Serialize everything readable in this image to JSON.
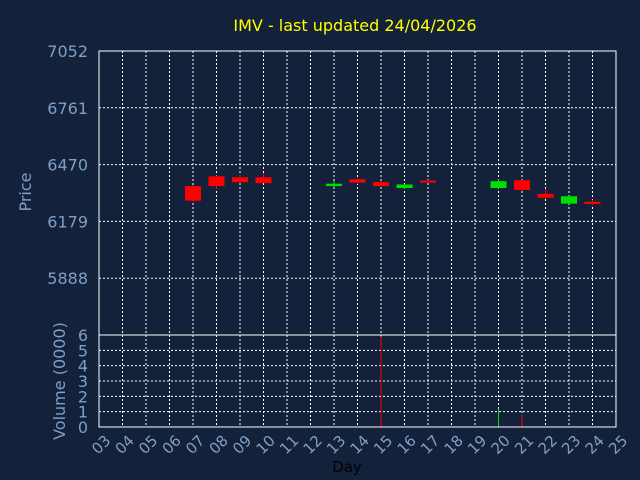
{
  "colors": {
    "background": "#13223a",
    "title": "#ffff00",
    "axis_text": "#7f9fc8",
    "frame": "#ffffff",
    "grid": "#ffffff",
    "bull": "#00e000",
    "bear": "#ff0000"
  },
  "chart_data": {
    "type": "candlestick",
    "title": "IMV - last updated 24/04/2026",
    "xlabel": "Day",
    "price_panel": {
      "ylabel": "Price",
      "ylim": [
        5597,
        7052
      ],
      "ytick_labels": [
        "7052",
        "6761",
        "6470",
        "6179",
        "5888"
      ],
      "grid": true
    },
    "volume_panel": {
      "ylabel": "Volume (0000)",
      "ylim": [
        0,
        6
      ],
      "ytick_labels": [
        "0",
        "1",
        "2",
        "3",
        "4",
        "5",
        "6"
      ],
      "grid": true
    },
    "x_tick_labels": [
      "03",
      "04",
      "05",
      "06",
      "07",
      "08",
      "09",
      "10",
      "11",
      "12",
      "13",
      "14",
      "15",
      "16",
      "17",
      "18",
      "19",
      "20",
      "21",
      "22",
      "23",
      "24",
      "25"
    ],
    "candles": [
      {
        "day": "07",
        "open": 6360,
        "high": 6365,
        "low": 6280,
        "close": 6285
      },
      {
        "day": "08",
        "open": 6410,
        "high": 6415,
        "low": 6345,
        "close": 6360
      },
      {
        "day": "09",
        "open": 6405,
        "high": 6420,
        "low": 6375,
        "close": 6380
      },
      {
        "day": "10",
        "open": 6405,
        "high": 6425,
        "low": 6375,
        "close": 6375
      },
      {
        "day": "13",
        "open": 6360,
        "high": 6385,
        "low": 6355,
        "close": 6372
      },
      {
        "day": "14",
        "open": 6395,
        "high": 6398,
        "low": 6370,
        "close": 6378
      },
      {
        "day": "15",
        "open": 6380,
        "high": 6385,
        "low": 6358,
        "close": 6360
      },
      {
        "day": "16",
        "open": 6350,
        "high": 6372,
        "low": 6345,
        "close": 6368
      },
      {
        "day": "17",
        "open": 6388,
        "high": 6392,
        "low": 6380,
        "close": 6383
      },
      {
        "day": "20",
        "open": 6350,
        "high": 6395,
        "low": 6345,
        "close": 6385
      },
      {
        "day": "21",
        "open": 6390,
        "high": 6392,
        "low": 6335,
        "close": 6340
      },
      {
        "day": "22",
        "open": 6320,
        "high": 6345,
        "low": 6295,
        "close": 6300
      },
      {
        "day": "23",
        "open": 6270,
        "high": 6310,
        "low": 6268,
        "close": 6308
      },
      {
        "day": "24",
        "open": 6280,
        "high": 6290,
        "low": 6262,
        "close": 6268
      }
    ],
    "volumes": [
      {
        "day": "15",
        "value": 5.9,
        "direction": "down"
      },
      {
        "day": "20",
        "value": 1.2,
        "direction": "up"
      },
      {
        "day": "21",
        "value": 0.8,
        "direction": "down"
      }
    ]
  }
}
